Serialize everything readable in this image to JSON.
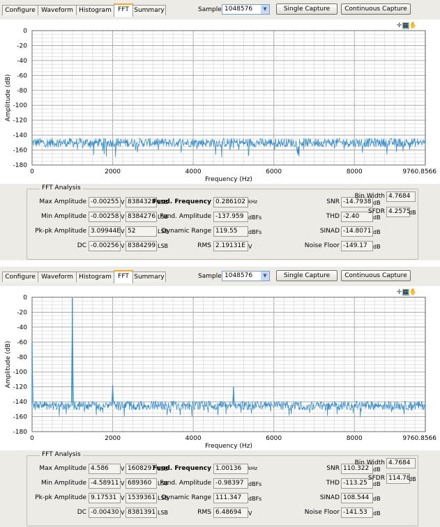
{
  "panels": [
    {
      "tabs": [
        "Configure",
        "Waveform",
        "Histogram",
        "FFT",
        "Summary"
      ],
      "active_tab": "FFT",
      "samples_label": "Samples",
      "samples_value": "1048576",
      "single_capture": "Single Capture",
      "continuous_capture": "Continuous Capture",
      "fft_analysis_title": "FFT Analysis",
      "fields": {
        "max_amplitude": {
          "label": "Max Amplitude",
          "v": "-0.00255",
          "v_unit": "V",
          "lsb": "8384328",
          "lsb_unit": "LSB"
        },
        "min_amplitude": {
          "label": "Min Amplitude",
          "v": "-0.00258",
          "v_unit": "V",
          "lsb": "8384276",
          "lsb_unit": "LSB"
        },
        "pkpk_amplitude": {
          "label": "Pk-pk Amplitude",
          "v": "3.09944E",
          "v_unit": "V",
          "lsb": "52",
          "lsb_unit": "LSB"
        },
        "dc": {
          "label": "DC",
          "v": "-0.00256",
          "v_unit": "V",
          "lsb": "8384299",
          "lsb_unit": "LSB"
        },
        "fund_frequency": {
          "label": "Fund. Frequency",
          "value": "0.286102",
          "unit": "kHz"
        },
        "fund_amplitude": {
          "label": "Fund. Amplitude",
          "value": "-137.959",
          "unit": "dBFs"
        },
        "dynamic_range": {
          "label": "Dynamic Range",
          "value": "119.55",
          "unit": "dBFs"
        },
        "rms": {
          "label": "RMS",
          "value": "2.19131E",
          "unit": "V"
        },
        "snr": {
          "label": "SNR",
          "value": "-14.7938",
          "unit": "dB"
        },
        "thd": {
          "label": "THD",
          "value": "-2.40",
          "unit": "dB"
        },
        "sinad": {
          "label": "SINAD",
          "value": "-14.8071",
          "unit": "dB"
        },
        "noise_floor": {
          "label": "Noise Floor",
          "value": "-149.17",
          "unit": "dB"
        },
        "bin_width": {
          "label": "Bin Width",
          "value": "4.7684",
          "unit": ""
        },
        "sfdr": {
          "label": "SFDR",
          "value": "4.2575",
          "unit": "dB"
        }
      },
      "chart_data": {
        "type": "line",
        "xlabel": "Frequency (Hz)",
        "ylabel": "Amplitude (dB)",
        "xlim": [
          0,
          9760.8566
        ],
        "ylim": [
          -180,
          0
        ],
        "xticks": [
          "0",
          "2000",
          "4000",
          "6000",
          "8000",
          "9760.8566"
        ],
        "yticks": [
          "0",
          "-20",
          "-40",
          "-60",
          "-80",
          "-100",
          "-120",
          "-140",
          "-160",
          "-180"
        ],
        "grid": true,
        "series_color": "#3a8fc8",
        "noise_floor_mean": -150,
        "peaks": []
      }
    },
    {
      "tabs": [
        "Configure",
        "Waveform",
        "Histogram",
        "FFT",
        "Summary"
      ],
      "active_tab": "FFT",
      "samples_label": "Samples",
      "samples_value": "1048576",
      "single_capture": "Single Capture",
      "continuous_capture": "Continuous Capture",
      "fft_analysis_title": "FFT Analysis",
      "fields": {
        "max_amplitude": {
          "label": "Max Amplitude",
          "v": "4.586",
          "v_unit": "V",
          "lsb": "1608297",
          "lsb_unit": "LSB"
        },
        "min_amplitude": {
          "label": "Min Amplitude",
          "v": "-4.58911",
          "v_unit": "V",
          "lsb": "689360",
          "lsb_unit": "LSB"
        },
        "pkpk_amplitude": {
          "label": "Pk-pk Amplitude",
          "v": "9.17531",
          "v_unit": "V",
          "lsb": "1539361",
          "lsb_unit": "LSB"
        },
        "dc": {
          "label": "DC",
          "v": "-0.00430",
          "v_unit": "V",
          "lsb": "8381391",
          "lsb_unit": "LSB"
        },
        "fund_frequency": {
          "label": "Fund. Frequency",
          "value": "1.00136",
          "unit": "kHz"
        },
        "fund_amplitude": {
          "label": "Fund. Amplitude",
          "value": "-0.98397",
          "unit": "dBFs"
        },
        "dynamic_range": {
          "label": "Dynamic Range",
          "value": "111.347",
          "unit": "dBFs"
        },
        "rms": {
          "label": "RMS",
          "value": "6.48694",
          "unit": "V"
        },
        "snr": {
          "label": "SNR",
          "value": "110.322",
          "unit": "dB"
        },
        "thd": {
          "label": "THD",
          "value": "-113.25",
          "unit": "dB"
        },
        "sinad": {
          "label": "SINAD",
          "value": "108.544",
          "unit": "dB"
        },
        "noise_floor": {
          "label": "Noise Floor",
          "value": "-141.53",
          "unit": "dB"
        },
        "bin_width": {
          "label": "Bin Width",
          "value": "4.7684",
          "unit": ""
        },
        "sfdr": {
          "label": "SFDR",
          "value": "114.78",
          "unit": "dB"
        }
      },
      "chart_data": {
        "type": "line",
        "xlabel": "Frequency (Hz)",
        "ylabel": "Amplitude (dB)",
        "xlim": [
          0,
          9760.8566
        ],
        "ylim": [
          -180,
          0
        ],
        "xticks": [
          "0",
          "2000",
          "4000",
          "6000",
          "8000",
          "9760.8566"
        ],
        "yticks": [
          "0",
          "-20",
          "-40",
          "-60",
          "-80",
          "-100",
          "-120",
          "-140",
          "-160",
          "-180"
        ],
        "grid": true,
        "series_color": "#3a8fc8",
        "noise_floor_mean": -145,
        "peaks": [
          {
            "x": 1000,
            "y": -1
          },
          {
            "x": 0,
            "y": -60
          },
          {
            "x": 2000,
            "y": -118
          },
          {
            "x": 5000,
            "y": -120
          }
        ]
      }
    }
  ]
}
